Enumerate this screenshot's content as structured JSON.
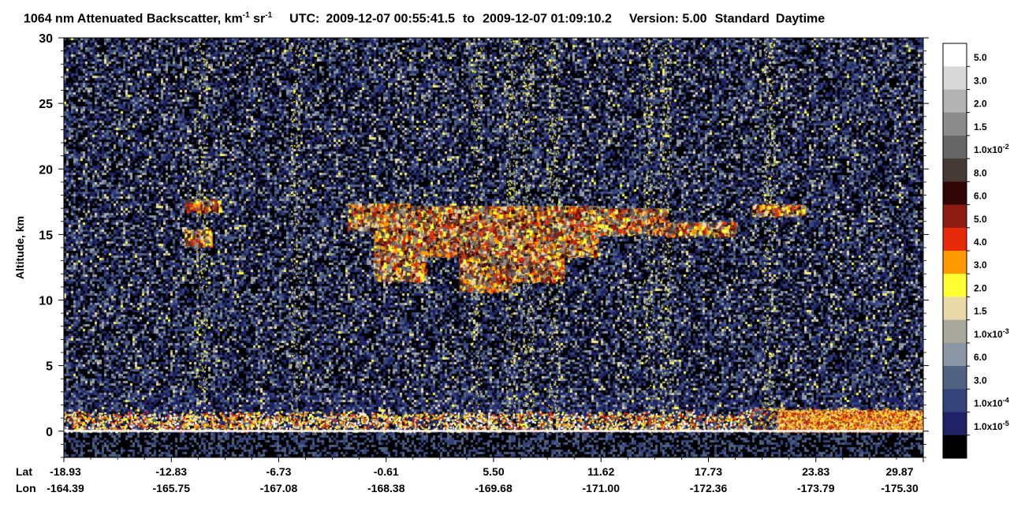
{
  "header": {
    "product": "1064 nm Attenuated Backscatter, km",
    "unit_exp_1": "-1",
    "unit_mid": " sr",
    "unit_exp_2": "-1",
    "utc_label": "UTC:",
    "utc_start": "2009-12-07 00:55:41.5",
    "utc_to": "to",
    "utc_end": "2009-12-07 01:09:10.2",
    "version": "Version: 5.00",
    "product_level": "Standard",
    "lighting": "Daytime"
  },
  "chart_data": {
    "type": "heatmap",
    "title": "1064 nm Attenuated Backscatter, km-1 sr-1",
    "ylabel": "Altitude, km",
    "ylim": [
      -2,
      30
    ],
    "yticks": [
      0,
      5,
      10,
      15,
      20,
      25,
      30
    ],
    "ytick_labels": [
      "0",
      "5",
      "10",
      "15",
      "20",
      "25",
      "30"
    ],
    "x_row_labels": [
      "Lat",
      "Lon"
    ],
    "lat": [
      "-18.93",
      "-12.83",
      "-6.73",
      "-0.61",
      "5.50",
      "11.62",
      "17.73",
      "23.83",
      "29.87"
    ],
    "lon": [
      "-164.39",
      "-165.75",
      "-167.08",
      "-168.38",
      "-169.68",
      "-171.00",
      "-172.36",
      "-173.79",
      "-175.30"
    ],
    "colorbar": {
      "labels": [
        {
          "m": "5.0",
          "e": ""
        },
        {
          "m": "3.0",
          "e": ""
        },
        {
          "m": "2.0",
          "e": ""
        },
        {
          "m": "1.5",
          "e": ""
        },
        {
          "m": "1.0x10",
          "e": "-2"
        },
        {
          "m": "8.0",
          "e": ""
        },
        {
          "m": "6.0",
          "e": ""
        },
        {
          "m": "5.0",
          "e": ""
        },
        {
          "m": "4.0",
          "e": ""
        },
        {
          "m": "3.0",
          "e": ""
        },
        {
          "m": "2.0",
          "e": ""
        },
        {
          "m": "1.5",
          "e": ""
        },
        {
          "m": "1.0x10",
          "e": "-3"
        },
        {
          "m": "6.0",
          "e": ""
        },
        {
          "m": "3.0",
          "e": ""
        },
        {
          "m": "1.0x10",
          "e": "-4"
        },
        {
          "m": "1.0x10",
          "e": "-5"
        }
      ],
      "colors": [
        "#ffffff",
        "#d9d9d9",
        "#b3b3b3",
        "#8c8c8c",
        "#666666",
        "#453a36",
        "#330606",
        "#8c1b12",
        "#e62b0a",
        "#ff9900",
        "#ffff33",
        "#ead9a8",
        "#a8a89c",
        "#8a96a3",
        "#506382",
        "#34437a",
        "#1f2366",
        "#000000"
      ]
    }
  }
}
